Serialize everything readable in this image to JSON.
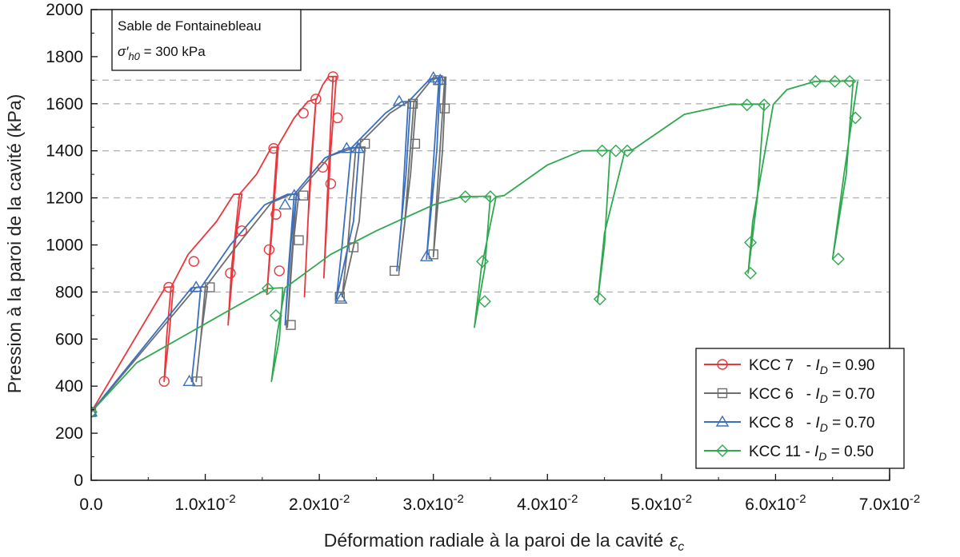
{
  "chart_data": {
    "type": "line",
    "xlabel": "Déformation radiale à la paroi de la cavité",
    "xlabel_symbol": "ε",
    "xlabel_subscript": "c",
    "ylabel": "Pression à la paroi de la cavité (kPa)",
    "xlim": [
      0,
      0.07
    ],
    "ylim": [
      0,
      2000
    ],
    "y_ticks": [
      0,
      200,
      400,
      600,
      800,
      1000,
      1200,
      1400,
      1600,
      1800,
      2000
    ],
    "x_ticks": [
      {
        "value": 0.0,
        "mantissa": "0.0",
        "exp": ""
      },
      {
        "value": 0.01,
        "mantissa": "1.0x10",
        "exp": "-2"
      },
      {
        "value": 0.02,
        "mantissa": "2.0x10",
        "exp": "-2"
      },
      {
        "value": 0.03,
        "mantissa": "3.0x10",
        "exp": "-2"
      },
      {
        "value": 0.04,
        "mantissa": "4.0x10",
        "exp": "-2"
      },
      {
        "value": 0.05,
        "mantissa": "5.0x10",
        "exp": "-2"
      },
      {
        "value": 0.06,
        "mantissa": "6.0x10",
        "exp": "-2"
      },
      {
        "value": 0.07,
        "mantissa": "7.0x10",
        "exp": "-2"
      }
    ],
    "reference_lines": [
      800,
      1200,
      1400,
      1600,
      1700
    ],
    "info_box": {
      "line1": "Sable de Fontainebleau",
      "sigma": "σ′",
      "sigma_sub": "h0",
      "line2_rest": " = 300 kPa"
    },
    "legend_position": "bottom-right",
    "series": [
      {
        "name": "KCC 7",
        "label_sep": "   - ",
        "label_id": "I",
        "label_id_sub": "D",
        "label_value": " = 0.90",
        "color": "#e8383d",
        "marker": "circle",
        "points": [
          [
            0,
            290
          ],
          [
            0.0065,
            820
          ],
          [
            0.0072,
            822
          ],
          [
            0.0068,
            600
          ],
          [
            0.0064,
            420
          ],
          [
            0.0066,
            600
          ],
          [
            0.007,
            820
          ],
          [
            0.0085,
            960
          ],
          [
            0.011,
            1100
          ],
          [
            0.0125,
            1215
          ],
          [
            0.0132,
            1216
          ],
          [
            0.0126,
            1000
          ],
          [
            0.012,
            660
          ],
          [
            0.0123,
            900
          ],
          [
            0.013,
            1215
          ],
          [
            0.0145,
            1300
          ],
          [
            0.0158,
            1415
          ],
          [
            0.0164,
            1416
          ],
          [
            0.016,
            1150
          ],
          [
            0.0154,
            790
          ],
          [
            0.0157,
            1000
          ],
          [
            0.0163,
            1415
          ],
          [
            0.0178,
            1540
          ],
          [
            0.019,
            1610
          ],
          [
            0.0197,
            1620
          ],
          [
            0.0192,
            1300
          ],
          [
            0.0187,
            780
          ],
          [
            0.019,
            1100
          ],
          [
            0.0197,
            1615
          ],
          [
            0.0203,
            1680
          ],
          [
            0.0208,
            1715
          ],
          [
            0.0215,
            1716
          ],
          [
            0.021,
            1400
          ],
          [
            0.0204,
            860
          ],
          [
            0.0207,
            1200
          ],
          [
            0.0212,
            1715
          ]
        ],
        "marker_points": [
          [
            0.0,
            290
          ],
          [
            0.0064,
            420
          ],
          [
            0.0068,
            820
          ],
          [
            0.009,
            930
          ],
          [
            0.0122,
            880
          ],
          [
            0.0132,
            1060
          ],
          [
            0.016,
            1410
          ],
          [
            0.0162,
            1130
          ],
          [
            0.0156,
            980
          ],
          [
            0.0165,
            890
          ],
          [
            0.0186,
            1560
          ],
          [
            0.0197,
            1620
          ],
          [
            0.0203,
            1330
          ],
          [
            0.021,
            1260
          ],
          [
            0.0212,
            1715
          ],
          [
            0.0216,
            1540
          ]
        ]
      },
      {
        "name": "KCC 6",
        "label_sep": "   - ",
        "label_id": "I",
        "label_id_sub": "D",
        "label_value": " = 0.70",
        "color": "#6e6e6e",
        "marker": "square",
        "points": [
          [
            0,
            290
          ],
          [
            0.0092,
            820
          ],
          [
            0.0102,
            822
          ],
          [
            0.0096,
            600
          ],
          [
            0.0092,
            420
          ],
          [
            0.0096,
            600
          ],
          [
            0.01,
            820
          ],
          [
            0.0125,
            980
          ],
          [
            0.0158,
            1180
          ],
          [
            0.0175,
            1215
          ],
          [
            0.0182,
            1216
          ],
          [
            0.0177,
            1000
          ],
          [
            0.0172,
            650
          ],
          [
            0.0175,
            900
          ],
          [
            0.018,
            1215
          ],
          [
            0.021,
            1380
          ],
          [
            0.0232,
            1415
          ],
          [
            0.024,
            1416
          ],
          [
            0.0235,
            1100
          ],
          [
            0.022,
            780
          ],
          [
            0.0225,
            1000
          ],
          [
            0.0232,
            1415
          ],
          [
            0.0262,
            1560
          ],
          [
            0.0278,
            1610
          ],
          [
            0.0285,
            1611
          ],
          [
            0.028,
            1300
          ],
          [
            0.027,
            890
          ],
          [
            0.0275,
            1100
          ],
          [
            0.0283,
            1610
          ],
          [
            0.0298,
            1700
          ],
          [
            0.0305,
            1712
          ],
          [
            0.0311,
            1713
          ],
          [
            0.0308,
            1400
          ],
          [
            0.03,
            950
          ],
          [
            0.0303,
            1200
          ],
          [
            0.031,
            1712
          ]
        ],
        "marker_points": [
          [
            0.0,
            290
          ],
          [
            0.0093,
            420
          ],
          [
            0.0104,
            820
          ],
          [
            0.0175,
            660
          ],
          [
            0.0182,
            1020
          ],
          [
            0.0186,
            1210
          ],
          [
            0.0218,
            780
          ],
          [
            0.023,
            990
          ],
          [
            0.024,
            1430
          ],
          [
            0.0266,
            890
          ],
          [
            0.0282,
            1600
          ],
          [
            0.0284,
            1430
          ],
          [
            0.03,
            960
          ],
          [
            0.0304,
            1700
          ],
          [
            0.031,
            1580
          ]
        ]
      },
      {
        "name": "KCC 8",
        "label_sep": "   - ",
        "label_id": "I",
        "label_id_sub": "D",
        "label_value": " = 0.70",
        "color": "#3a6fbe",
        "marker": "triangle",
        "points": [
          [
            0,
            290
          ],
          [
            0.0088,
            818
          ],
          [
            0.0096,
            820
          ],
          [
            0.0092,
            600
          ],
          [
            0.0088,
            420
          ],
          [
            0.0092,
            600
          ],
          [
            0.0096,
            818
          ],
          [
            0.0122,
            1000
          ],
          [
            0.0152,
            1170
          ],
          [
            0.0172,
            1215
          ],
          [
            0.018,
            1216
          ],
          [
            0.0175,
            1000
          ],
          [
            0.017,
            660
          ],
          [
            0.0173,
            900
          ],
          [
            0.0178,
            1215
          ],
          [
            0.0205,
            1370
          ],
          [
            0.0225,
            1412
          ],
          [
            0.0235,
            1413
          ],
          [
            0.023,
            1100
          ],
          [
            0.0215,
            770
          ],
          [
            0.022,
            1000
          ],
          [
            0.0228,
            1412
          ],
          [
            0.0258,
            1560
          ],
          [
            0.0272,
            1608
          ],
          [
            0.028,
            1609
          ],
          [
            0.0276,
            1300
          ],
          [
            0.0268,
            890
          ],
          [
            0.0272,
            1100
          ],
          [
            0.0278,
            1608
          ],
          [
            0.0296,
            1700
          ],
          [
            0.03,
            1710
          ],
          [
            0.0306,
            1711
          ],
          [
            0.0303,
            1400
          ],
          [
            0.0294,
            940
          ],
          [
            0.0298,
            1200
          ],
          [
            0.0305,
            1710
          ]
        ],
        "marker_points": [
          [
            0.0,
            290
          ],
          [
            0.0086,
            420
          ],
          [
            0.0092,
            820
          ],
          [
            0.017,
            1170
          ],
          [
            0.0178,
            1210
          ],
          [
            0.0219,
            770
          ],
          [
            0.0224,
            1410
          ],
          [
            0.0234,
            1410
          ],
          [
            0.027,
            1610
          ],
          [
            0.0294,
            950
          ],
          [
            0.03,
            1710
          ],
          [
            0.0306,
            1700
          ]
        ]
      },
      {
        "name": "KCC 11",
        "label_sep": " - ",
        "label_id": "I",
        "label_id_sub": "D",
        "label_value": " = 0.50",
        "color": "#2fa84f",
        "marker": "diamond",
        "points": [
          [
            0,
            290
          ],
          [
            0.004,
            500
          ],
          [
            0.008,
            610
          ],
          [
            0.012,
            720
          ],
          [
            0.0155,
            815
          ],
          [
            0.0168,
            818
          ],
          [
            0.0165,
            600
          ],
          [
            0.0158,
            420
          ],
          [
            0.0163,
            620
          ],
          [
            0.017,
            818
          ],
          [
            0.021,
            960
          ],
          [
            0.025,
            1060
          ],
          [
            0.03,
            1170
          ],
          [
            0.0325,
            1205
          ],
          [
            0.035,
            1207
          ],
          [
            0.0345,
            900
          ],
          [
            0.0336,
            650
          ],
          [
            0.0342,
            900
          ],
          [
            0.0355,
            1205
          ],
          [
            0.0362,
            1210
          ],
          [
            0.04,
            1340
          ],
          [
            0.043,
            1400
          ],
          [
            0.0455,
            1401
          ],
          [
            0.045,
            1000
          ],
          [
            0.0444,
            760
          ],
          [
            0.045,
            1050
          ],
          [
            0.0468,
            1400
          ],
          [
            0.0475,
            1405
          ],
          [
            0.052,
            1555
          ],
          [
            0.056,
            1597
          ],
          [
            0.059,
            1598
          ],
          [
            0.0584,
            1200
          ],
          [
            0.0576,
            880
          ],
          [
            0.058,
            1100
          ],
          [
            0.0598,
            1597
          ],
          [
            0.061,
            1660
          ],
          [
            0.0635,
            1695
          ],
          [
            0.066,
            1696
          ],
          [
            0.0668,
            1697
          ],
          [
            0.0662,
            1300
          ],
          [
            0.065,
            940
          ],
          [
            0.066,
            1300
          ],
          [
            0.0672,
            1696
          ]
        ],
        "marker_points": [
          [
            0.0,
            290
          ],
          [
            0.0155,
            815
          ],
          [
            0.0162,
            700
          ],
          [
            0.0328,
            1205
          ],
          [
            0.0343,
            930
          ],
          [
            0.0345,
            760
          ],
          [
            0.035,
            1205
          ],
          [
            0.0448,
            1400
          ],
          [
            0.0446,
            770
          ],
          [
            0.046,
            1400
          ],
          [
            0.047,
            1400
          ],
          [
            0.0575,
            1595
          ],
          [
            0.0578,
            1010
          ],
          [
            0.0578,
            880
          ],
          [
            0.059,
            1595
          ],
          [
            0.0635,
            1695
          ],
          [
            0.0652,
            1695
          ],
          [
            0.0665,
            1695
          ],
          [
            0.067,
            1540
          ],
          [
            0.0655,
            940
          ]
        ]
      }
    ]
  }
}
